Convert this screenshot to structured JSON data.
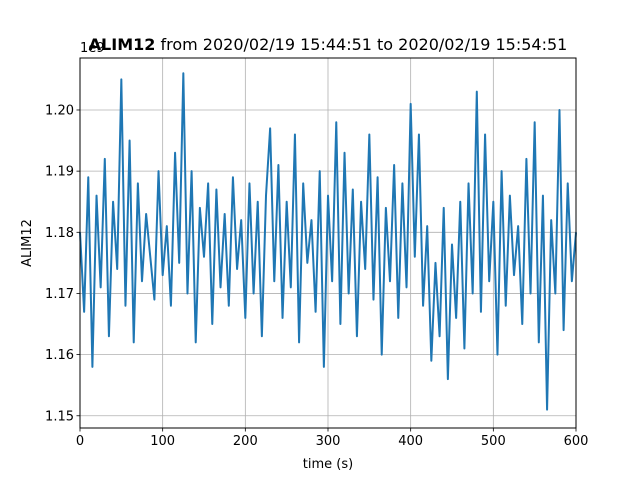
{
  "chart_data": {
    "type": "line",
    "title_bold": "ALIM12",
    "title_rest": " from 2020/02/19 15:44:51 to 2020/02/19 15:54:51",
    "xlabel": "time (s)",
    "ylabel": "ALIM12",
    "offset_text": "1e9",
    "xlim": [
      0,
      600
    ],
    "ylim": [
      1.148,
      1.2085
    ],
    "grid": true,
    "color": "#1f77b4",
    "x_ticks": [
      0,
      100,
      200,
      300,
      400,
      500,
      600
    ],
    "x_tick_labels": [
      "0",
      "100",
      "200",
      "300",
      "400",
      "500",
      "600"
    ],
    "y_ticks": [
      1.15,
      1.16,
      1.17,
      1.18,
      1.19,
      1.2
    ],
    "y_tick_labels": [
      "1.15",
      "1.16",
      "1.17",
      "1.18",
      "1.19",
      "1.20"
    ],
    "series": [
      {
        "x": [
          0,
          5,
          10,
          15,
          20,
          25,
          30,
          35,
          40,
          45,
          50,
          55,
          60,
          65,
          70,
          75,
          80,
          85,
          90,
          95,
          100,
          105,
          110,
          115,
          120,
          125,
          130,
          135,
          140,
          145,
          150,
          155,
          160,
          165,
          170,
          175,
          180,
          185,
          190,
          195,
          200,
          205,
          210,
          215,
          220,
          225,
          230,
          235,
          240,
          245,
          250,
          255,
          260,
          265,
          270,
          275,
          280,
          285,
          290,
          295,
          300,
          305,
          310,
          315,
          320,
          325,
          330,
          335,
          340,
          345,
          350,
          355,
          360,
          365,
          370,
          375,
          380,
          385,
          390,
          395,
          400,
          405,
          410,
          415,
          420,
          425,
          430,
          435,
          440,
          445,
          450,
          455,
          460,
          465,
          470,
          475,
          480,
          485,
          490,
          495,
          500,
          505,
          510,
          515,
          520,
          525,
          530,
          535,
          540,
          545,
          550,
          555,
          560,
          565,
          570,
          575,
          580,
          585,
          590,
          595,
          600
        ],
        "y": [
          1.18,
          1.167,
          1.189,
          1.158,
          1.186,
          1.171,
          1.192,
          1.163,
          1.185,
          1.174,
          1.205,
          1.168,
          1.195,
          1.162,
          1.188,
          1.172,
          1.183,
          1.176,
          1.169,
          1.19,
          1.173,
          1.181,
          1.168,
          1.193,
          1.175,
          1.206,
          1.17,
          1.19,
          1.162,
          1.184,
          1.176,
          1.188,
          1.165,
          1.187,
          1.171,
          1.183,
          1.168,
          1.189,
          1.174,
          1.182,
          1.166,
          1.188,
          1.17,
          1.185,
          1.163,
          1.186,
          1.197,
          1.172,
          1.191,
          1.166,
          1.185,
          1.171,
          1.196,
          1.162,
          1.188,
          1.175,
          1.182,
          1.167,
          1.19,
          1.158,
          1.186,
          1.172,
          1.198,
          1.165,
          1.193,
          1.17,
          1.187,
          1.163,
          1.185,
          1.174,
          1.196,
          1.169,
          1.189,
          1.16,
          1.184,
          1.172,
          1.191,
          1.166,
          1.188,
          1.171,
          1.201,
          1.176,
          1.196,
          1.168,
          1.181,
          1.159,
          1.175,
          1.163,
          1.184,
          1.156,
          1.178,
          1.166,
          1.185,
          1.161,
          1.188,
          1.17,
          1.203,
          1.167,
          1.196,
          1.172,
          1.185,
          1.16,
          1.19,
          1.168,
          1.186,
          1.173,
          1.181,
          1.165,
          1.192,
          1.17,
          1.198,
          1.162,
          1.186,
          1.151,
          1.182,
          1.17,
          1.2,
          1.164,
          1.188,
          1.172,
          1.18
        ]
      }
    ]
  }
}
